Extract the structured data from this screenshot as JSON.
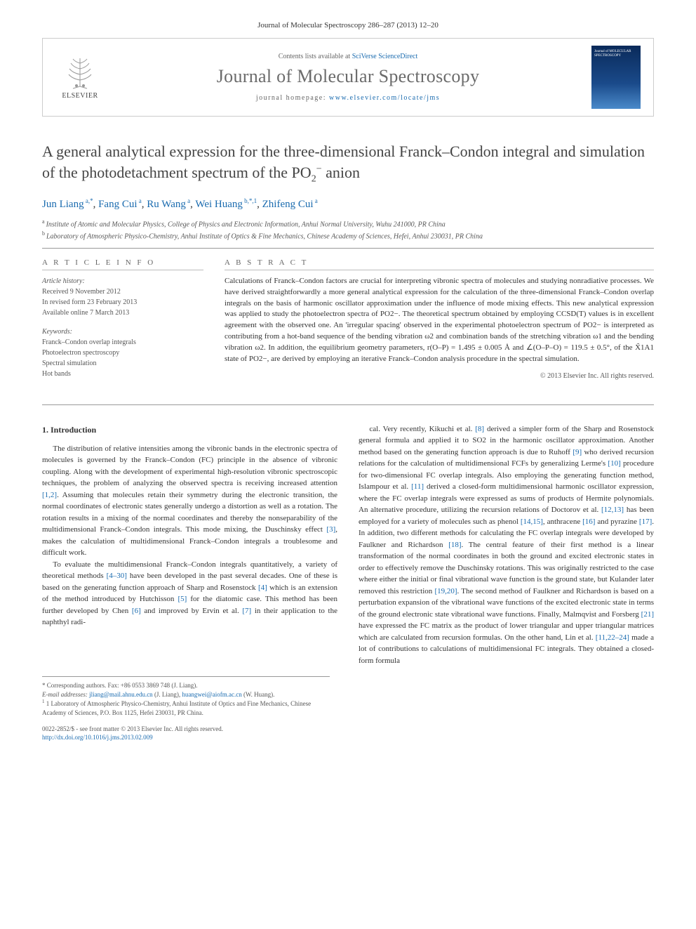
{
  "journal_ref": "Journal of Molecular Spectroscopy 286–287 (2013) 12–20",
  "header": {
    "contents_prefix": "Contents lists available at ",
    "contents_link": "SciVerse ScienceDirect",
    "journal_name": "Journal of Molecular Spectroscopy",
    "homepage_prefix": "journal homepage: ",
    "homepage_link": "www.elsevier.com/locate/jms",
    "elsevier": "ELSEVIER",
    "cover_text": "Journal of MOLECULAR SPECTROSCOPY"
  },
  "title_parts": {
    "pre": "A general analytical expression for the three-dimensional Franck–Condon integral and simulation of the photodetachment spectrum of the PO",
    "sub": "2",
    "sup": "−",
    "post": " anion"
  },
  "authors": [
    {
      "name": "Jun Liang",
      "affs": "a,",
      "mark": "*"
    },
    {
      "name": "Fang Cui",
      "affs": "a"
    },
    {
      "name": "Ru Wang",
      "affs": "a"
    },
    {
      "name": "Wei Huang",
      "affs": "b,",
      "mark": "*,1"
    },
    {
      "name": "Zhifeng Cui",
      "affs": "a"
    }
  ],
  "affiliations": [
    {
      "key": "a",
      "text": "Institute of Atomic and Molecular Physics, College of Physics and Electronic Information, Anhui Normal University, Wuhu 241000, PR China"
    },
    {
      "key": "b",
      "text": "Laboratory of Atmospheric Physico-Chemistry, Anhui Institute of Optics & Fine Mechanics, Chinese Academy of Sciences, Hefei, Anhui 230031, PR China"
    }
  ],
  "info": {
    "section_label": "A R T I C L E   I N F O",
    "history_label": "Article history:",
    "history": [
      "Received 9 November 2012",
      "In revised form 23 February 2013",
      "Available online 7 March 2013"
    ],
    "keywords_label": "Keywords:",
    "keywords": [
      "Franck–Condon overlap integrals",
      "Photoelectron spectroscopy",
      "Spectral simulation",
      "Hot bands"
    ]
  },
  "abstract": {
    "section_label": "A B S T R A C T",
    "text": "Calculations of Franck–Condon factors are crucial for interpreting vibronic spectra of molecules and studying nonradiative processes. We have derived straightforwardly a more general analytical expression for the calculation of the three-dimensional Franck–Condon overlap integrals on the basis of harmonic oscillator approximation under the influence of mode mixing effects. This new analytical expression was applied to study the photoelectron spectra of PO2−. The theoretical spectrum obtained by employing CCSD(T) values is in excellent agreement with the observed one. An 'irregular spacing' observed in the experimental photoelectron spectrum of PO2− is interpreted as contributing from a hot-band sequence of the bending vibration ω2 and combination bands of the stretching vibration ω1 and the bending vibration ω2. In addition, the equilibrium geometry parameters, r(O–P) = 1.495 ± 0.005 Å and ∠(O–P–O) = 119.5 ± 0.5°, of the X̃1A1 state of PO2−, are derived by employing an iterative Franck–Condon analysis procedure in the spectral simulation.",
    "copyright": "© 2013 Elsevier Inc. All rights reserved."
  },
  "body": {
    "heading": "1. Introduction",
    "col1": [
      "The distribution of relative intensities among the vibronic bands in the electronic spectra of molecules is governed by the Franck–Condon (FC) principle in the absence of vibronic coupling. Along with the development of experimental high-resolution vibronic spectroscopic techniques, the problem of analyzing the observed spectra is receiving increased attention [1,2]. Assuming that molecules retain their symmetry during the electronic transition, the normal coordinates of electronic states generally undergo a distortion as well as a rotation. The rotation results in a mixing of the normal coordinates and thereby the nonseparability of the multidimensional Franck–Condon integrals. This mode mixing, the Duschinsky effect [3], makes the calculation of multidimensional Franck–Condon integrals a troublesome and difficult work.",
      "To evaluate the multidimensional Franck–Condon integrals quantitatively, a variety of theoretical methods [4–30] have been developed in the past several decades. One of these is based on the generating function approach of Sharp and Rosenstock [4] which is an extension of the method introduced by Hutchisson [5] for the diatomic case. This method has been further developed by Chen [6] and improved by Ervin et al. [7] in their application to the naphthyl radi-"
    ],
    "col2": [
      "cal. Very recently, Kikuchi et al. [8] derived a simpler form of the Sharp and Rosenstock general formula and applied it to SO2 in the harmonic oscillator approximation. Another method based on the generating function approach is due to Ruhoff [9] who derived recursion relations for the calculation of multidimensional FCFs by generalizing Lerme's [10] procedure for two-dimensional FC overlap integrals. Also employing the generating function method, Islampour et al. [11] derived a closed-form multidimensional harmonic oscillator expression, where the FC overlap integrals were expressed as sums of products of Hermite polynomials. An alternative procedure, utilizing the recursion relations of Doctorov et al. [12,13] has been employed for a variety of molecules such as phenol [14,15], anthracene [16] and pyrazine [17]. In addition, two different methods for calculating the FC overlap integrals were developed by Faulkner and Richardson [18]. The central feature of their first method is a linear transformation of the normal coordinates in both the ground and excited electronic states in order to effectively remove the Duschinsky rotations. This was originally restricted to the case where either the initial or final vibrational wave function is the ground state, but Kulander later removed this restriction [19,20]. The second method of Faulkner and Richardson is based on a perturbation expansion of the vibrational wave functions of the excited electronic state in terms of the ground electronic state vibrational wave functions. Finally, Malmqvist and Forsberg [21] have expressed the FC matrix as the product of lower triangular and upper triangular matrices which are calculated from recursion formulas. On the other hand, Lin et al. [11,22–24] made a lot of contributions to calculations of multidimensional FC integrals. They obtained a closed-form formula"
    ]
  },
  "footnotes": {
    "corr_label": "* Corresponding authors. Fax: +86 0553 3869 748 (J. Liang).",
    "email_label": "E-mail addresses: ",
    "email1": "jliang@mail.ahnu.edu.cn",
    "email1_who": " (J. Liang), ",
    "email2": "huangwei@aiofm.ac.cn",
    "email2_who": " (W. Huang).",
    "note1": "1 Laboratory of Atmospheric Physico-Chemistry, Anhui Institute of Optics and Fine Mechanics, Chinese Academy of Sciences, P.O. Box 1125, Hefei 230031, PR China."
  },
  "bottom": {
    "issn_line": "0022-2852/$ - see front matter © 2013 Elsevier Inc. All rights reserved.",
    "doi": "http://dx.doi.org/10.1016/j.jms.2013.02.009"
  },
  "colors": {
    "link": "#1a6baf",
    "text": "#333333",
    "muted": "#666666",
    "rule": "#999999"
  }
}
